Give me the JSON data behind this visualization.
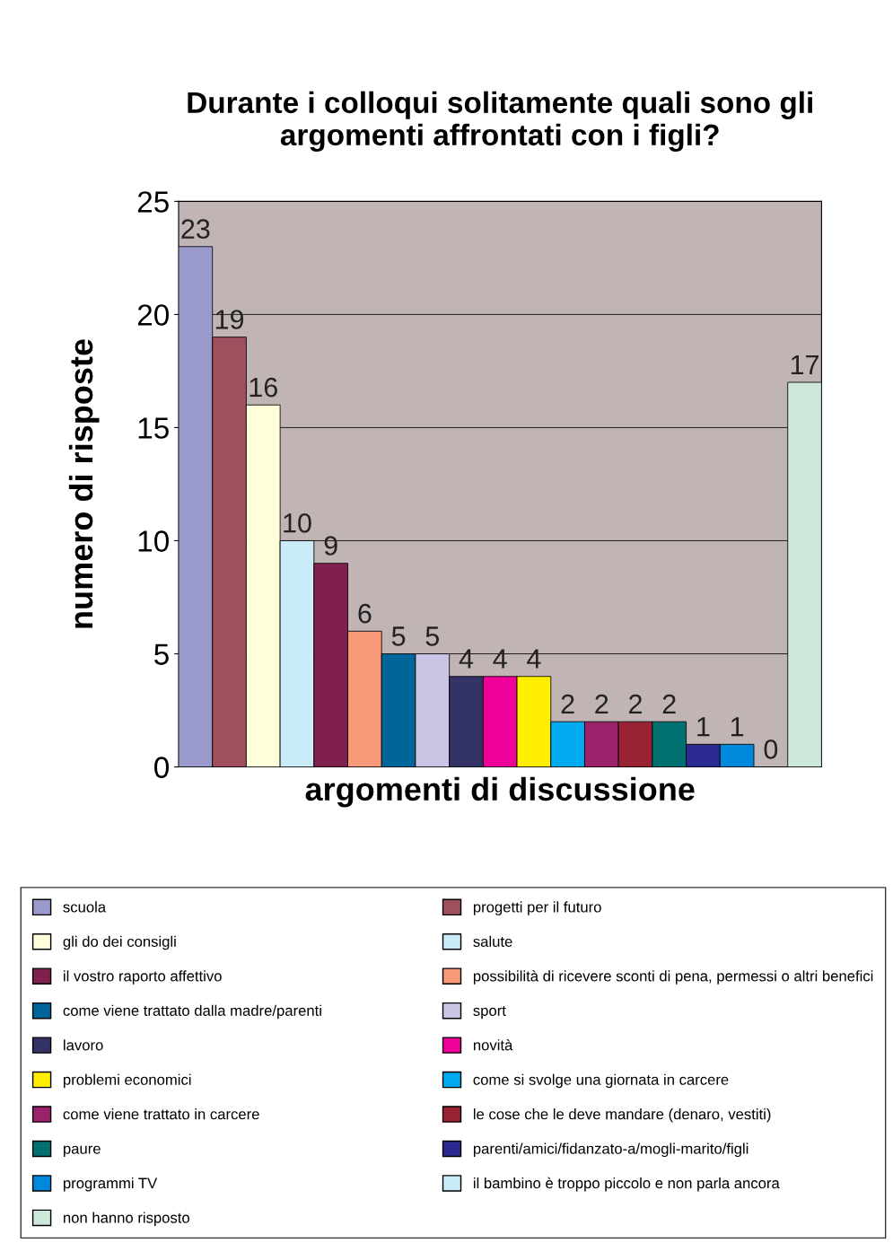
{
  "chart_data": {
    "type": "bar",
    "title": "Durante i colloqui solitamente quali sono gli\nargomenti affrontati con i figli?",
    "xlabel": "argomenti di discussione",
    "ylabel": "numero di risposte",
    "categories": [
      null,
      null,
      null,
      null,
      null,
      null,
      null,
      null,
      null,
      null,
      null,
      null,
      null,
      null,
      null,
      null,
      null,
      null,
      null
    ],
    "series": [
      {
        "name": "scuola",
        "color": "#9999cc",
        "values": [
          23,
          null,
          null,
          null,
          null,
          null,
          null,
          null,
          null,
          null,
          null,
          null,
          null,
          null,
          null,
          null,
          null,
          null,
          null
        ]
      },
      {
        "name": "progetti per il futuro",
        "color": "#a04f5f",
        "values": [
          null,
          19,
          null,
          null,
          null,
          null,
          null,
          null,
          null,
          null,
          null,
          null,
          null,
          null,
          null,
          null,
          null,
          null,
          null
        ]
      },
      {
        "name": "gli do dei consigli",
        "color": "#ffffd9",
        "values": [
          null,
          null,
          16,
          null,
          null,
          null,
          null,
          null,
          null,
          null,
          null,
          null,
          null,
          null,
          null,
          null,
          null,
          null,
          null
        ]
      },
      {
        "name": "salute",
        "color": "#c9ecf8",
        "values": [
          null,
          null,
          null,
          10,
          null,
          null,
          null,
          null,
          null,
          null,
          null,
          null,
          null,
          null,
          null,
          null,
          null,
          null,
          null
        ]
      },
      {
        "name": "il vostro raporto affettivo",
        "color": "#80204f",
        "values": [
          null,
          null,
          null,
          null,
          9,
          null,
          null,
          null,
          null,
          null,
          null,
          null,
          null,
          null,
          null,
          null,
          null,
          null,
          null
        ]
      },
      {
        "name": "possibilità di ricevere sconti di pena, permessi o altri benefici",
        "color": "#f79878",
        "values": [
          null,
          null,
          null,
          null,
          null,
          6,
          null,
          null,
          null,
          null,
          null,
          null,
          null,
          null,
          null,
          null,
          null,
          null,
          null
        ]
      },
      {
        "name": "come viene trattato dalla madre/parenti",
        "color": "#006699",
        "values": [
          null,
          null,
          null,
          null,
          null,
          null,
          5,
          null,
          null,
          null,
          null,
          null,
          null,
          null,
          null,
          null,
          null,
          null,
          null
        ]
      },
      {
        "name": "sport",
        "color": "#ccc4e4",
        "values": [
          null,
          null,
          null,
          null,
          null,
          null,
          null,
          5,
          null,
          null,
          null,
          null,
          null,
          null,
          null,
          null,
          null,
          null,
          null
        ]
      },
      {
        "name": "lavoro",
        "color": "#333366",
        "values": [
          null,
          null,
          null,
          null,
          null,
          null,
          null,
          null,
          4,
          null,
          null,
          null,
          null,
          null,
          null,
          null,
          null,
          null,
          null
        ]
      },
      {
        "name": "novità",
        "color": "#ee0099",
        "values": [
          null,
          null,
          null,
          null,
          null,
          null,
          null,
          null,
          null,
          4,
          null,
          null,
          null,
          null,
          null,
          null,
          null,
          null,
          null
        ]
      },
      {
        "name": "problemi economici",
        "color": "#ffee00",
        "values": [
          null,
          null,
          null,
          null,
          null,
          null,
          null,
          null,
          null,
          null,
          4,
          null,
          null,
          null,
          null,
          null,
          null,
          null,
          null
        ]
      },
      {
        "name": "come si svolge una giornata in carcere",
        "color": "#00aaee",
        "values": [
          null,
          null,
          null,
          null,
          null,
          null,
          null,
          null,
          null,
          null,
          null,
          2,
          null,
          null,
          null,
          null,
          null,
          null,
          null
        ]
      },
      {
        "name": "come viene trattato in carcere",
        "color": "#99226a",
        "values": [
          null,
          null,
          null,
          null,
          null,
          null,
          null,
          null,
          null,
          null,
          null,
          null,
          2,
          null,
          null,
          null,
          null,
          null,
          null
        ]
      },
      {
        "name": "le cose che le deve mandare (denaro, vestiti)",
        "color": "#992233",
        "values": [
          null,
          null,
          null,
          null,
          null,
          null,
          null,
          null,
          null,
          null,
          null,
          null,
          null,
          2,
          null,
          null,
          null,
          null,
          null
        ]
      },
      {
        "name": "paure",
        "color": "#007070",
        "values": [
          null,
          null,
          null,
          null,
          null,
          null,
          null,
          null,
          null,
          null,
          null,
          null,
          null,
          null,
          2,
          null,
          null,
          null,
          null
        ]
      },
      {
        "name": "parenti/amici/fidanzato-a/mogli-marito/figli",
        "color": "#2a2a90",
        "values": [
          null,
          null,
          null,
          null,
          null,
          null,
          null,
          null,
          null,
          null,
          null,
          null,
          null,
          null,
          null,
          1,
          null,
          null,
          null
        ]
      },
      {
        "name": "programmi TV",
        "color": "#0088dd",
        "values": [
          null,
          null,
          null,
          null,
          null,
          null,
          null,
          null,
          null,
          null,
          null,
          null,
          null,
          null,
          null,
          null,
          1,
          null,
          null
        ]
      },
      {
        "name": "il bambino è troppo piccolo e non parla ancora",
        "color": "#c9ecf8",
        "values": [
          null,
          null,
          null,
          null,
          null,
          null,
          null,
          null,
          null,
          null,
          null,
          null,
          null,
          null,
          null,
          null,
          null,
          0,
          null
        ]
      },
      {
        "name": "non hanno risposto",
        "color": "#cce8d8",
        "values": [
          null,
          null,
          null,
          null,
          null,
          null,
          null,
          null,
          null,
          null,
          null,
          null,
          null,
          null,
          null,
          null,
          null,
          null,
          17
        ]
      }
    ],
    "ylim": [
      0,
      25
    ],
    "yticks": [
      0,
      5,
      10,
      15,
      20,
      25
    ],
    "grid": "y",
    "legend": "bottom",
    "tick_labels": "y",
    "data_labels": true
  }
}
